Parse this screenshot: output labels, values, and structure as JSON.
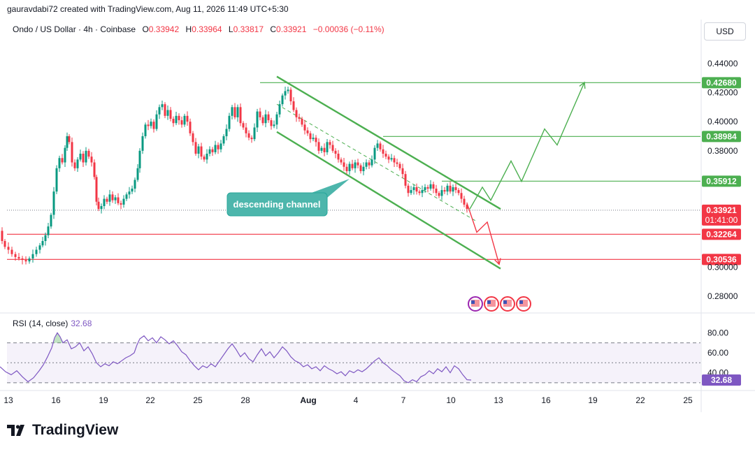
{
  "header": {
    "credit": "gauravdabi72 created with TradingView.com, Aug 11, 2026 11:49 UTC+5:30",
    "symbol": "Ondo / US Dollar · 4h · Coinbase",
    "open_label": "O",
    "open": "0.33942",
    "high_label": "H",
    "high": "0.33964",
    "low_label": "L",
    "low": "0.33817",
    "close_label": "C",
    "close": "0.33921",
    "change": "−0.00036 (−0.11%)",
    "currency": "USD"
  },
  "brand": {
    "name": "TradingView",
    "logo_icon": "tradingview-logo-icon"
  },
  "colors": {
    "up": "#089981",
    "down": "#f23645",
    "green_line": "#4caf50",
    "red_line": "#f23645",
    "rsi": "#7e57c2",
    "callout": "#4db6ac"
  },
  "annotation": {
    "text": "descending channel"
  },
  "chart_data": [
    {
      "type": "candlestick",
      "ylim": [
        0.27,
        0.45
      ],
      "y_ticks": [
        "0.44000",
        "0.42000",
        "0.40000",
        "0.38000",
        "0.30000",
        "0.28000"
      ],
      "x_ticks": [
        "13",
        "16",
        "19",
        "22",
        "25",
        "28",
        "Aug",
        "4",
        "7",
        "10",
        "13",
        "16",
        "19",
        "22",
        "25"
      ],
      "last_price": 0.33921,
      "countdown": "01:41:00",
      "horizontal_levels": [
        {
          "value": 0.4268,
          "label": "0.42680",
          "color": "green"
        },
        {
          "value": 0.38984,
          "label": "0.38984",
          "color": "green"
        },
        {
          "value": 0.35912,
          "label": "0.35912",
          "color": "green"
        },
        {
          "value": 0.32264,
          "label": "0.32264",
          "color": "red"
        },
        {
          "value": 0.30536,
          "label": "0.30536",
          "color": "red"
        }
      ],
      "price_path": [
        [
          0,
          0.325
        ],
        [
          4,
          0.318
        ],
        [
          8,
          0.314
        ],
        [
          13,
          0.312
        ],
        [
          18,
          0.309
        ],
        [
          23,
          0.307
        ],
        [
          28,
          0.306
        ],
        [
          33,
          0.305
        ],
        [
          38,
          0.304
        ],
        [
          43,
          0.306
        ],
        [
          48,
          0.309
        ],
        [
          53,
          0.312
        ],
        [
          58,
          0.315
        ],
        [
          62,
          0.318
        ],
        [
          66,
          0.322
        ],
        [
          70,
          0.328
        ],
        [
          74,
          0.336
        ],
        [
          78,
          0.352
        ],
        [
          82,
          0.368
        ],
        [
          86,
          0.375
        ],
        [
          90,
          0.372
        ],
        [
          94,
          0.382
        ],
        [
          97,
          0.39
        ],
        [
          100,
          0.386
        ],
        [
          104,
          0.372
        ],
        [
          108,
          0.368
        ],
        [
          112,
          0.374
        ],
        [
          116,
          0.378
        ],
        [
          120,
          0.372
        ],
        [
          124,
          0.38
        ],
        [
          128,
          0.376
        ],
        [
          132,
          0.372
        ],
        [
          136,
          0.362
        ],
        [
          139,
          0.345
        ],
        [
          142,
          0.34
        ],
        [
          146,
          0.342
        ],
        [
          150,
          0.347
        ],
        [
          154,
          0.345
        ],
        [
          158,
          0.35
        ],
        [
          162,
          0.346
        ],
        [
          166,
          0.348
        ],
        [
          170,
          0.344
        ],
        [
          174,
          0.343
        ],
        [
          178,
          0.347
        ],
        [
          182,
          0.35
        ],
        [
          186,
          0.352
        ],
        [
          190,
          0.354
        ],
        [
          194,
          0.36
        ],
        [
          198,
          0.368
        ],
        [
          201,
          0.38
        ],
        [
          205,
          0.39
        ],
        [
          209,
          0.398
        ],
        [
          213,
          0.397
        ],
        [
          217,
          0.4
        ],
        [
          221,
          0.395
        ],
        [
          225,
          0.405
        ],
        [
          229,
          0.41
        ],
        [
          233,
          0.412
        ],
        [
          237,
          0.404
        ],
        [
          241,
          0.408
        ],
        [
          245,
          0.402
        ],
        [
          249,
          0.399
        ],
        [
          253,
          0.404
        ],
        [
          257,
          0.401
        ],
        [
          261,
          0.398
        ],
        [
          265,
          0.404
        ],
        [
          269,
          0.4
        ],
        [
          273,
          0.392
        ],
        [
          277,
          0.386
        ],
        [
          281,
          0.378
        ],
        [
          285,
          0.383
        ],
        [
          289,
          0.376
        ],
        [
          293,
          0.374
        ],
        [
          297,
          0.378
        ],
        [
          301,
          0.381
        ],
        [
          305,
          0.379
        ],
        [
          309,
          0.384
        ],
        [
          313,
          0.381
        ],
        [
          317,
          0.385
        ],
        [
          321,
          0.39
        ],
        [
          325,
          0.395
        ],
        [
          329,
          0.404
        ],
        [
          333,
          0.41
        ],
        [
          337,
          0.403
        ],
        [
          341,
          0.41
        ],
        [
          345,
          0.399
        ],
        [
          349,
          0.396
        ],
        [
          353,
          0.392
        ],
        [
          357,
          0.389
        ],
        [
          361,
          0.388
        ],
        [
          365,
          0.396
        ],
        [
          369,
          0.407
        ],
        [
          373,
          0.403
        ],
        [
          377,
          0.399
        ],
        [
          381,
          0.405
        ],
        [
          385,
          0.401
        ],
        [
          389,
          0.397
        ],
        [
          393,
          0.398
        ],
        [
          397,
          0.405
        ],
        [
          401,
          0.412
        ],
        [
          405,
          0.418
        ],
        [
          409,
          0.421
        ],
        [
          413,
          0.422
        ],
        [
          417,
          0.414
        ],
        [
          421,
          0.408
        ],
        [
          425,
          0.403
        ],
        [
          429,
          0.402
        ],
        [
          433,
          0.398
        ],
        [
          437,
          0.394
        ],
        [
          441,
          0.392
        ],
        [
          445,
          0.388
        ],
        [
          449,
          0.389
        ],
        [
          453,
          0.386
        ],
        [
          457,
          0.38
        ],
        [
          461,
          0.382
        ],
        [
          465,
          0.379
        ],
        [
          469,
          0.386
        ],
        [
          473,
          0.384
        ],
        [
          477,
          0.38
        ],
        [
          481,
          0.378
        ],
        [
          485,
          0.374
        ],
        [
          489,
          0.372
        ],
        [
          493,
          0.369
        ],
        [
          497,
          0.366
        ],
        [
          501,
          0.371
        ],
        [
          505,
          0.368
        ],
        [
          509,
          0.372
        ],
        [
          513,
          0.37
        ],
        [
          517,
          0.366
        ],
        [
          521,
          0.369
        ],
        [
          525,
          0.372
        ],
        [
          529,
          0.37
        ],
        [
          533,
          0.374
        ],
        [
          537,
          0.382
        ],
        [
          541,
          0.385
        ],
        [
          545,
          0.381
        ],
        [
          549,
          0.378
        ],
        [
          553,
          0.376
        ],
        [
          557,
          0.374
        ],
        [
          561,
          0.375
        ],
        [
          565,
          0.372
        ],
        [
          569,
          0.371
        ],
        [
          573,
          0.368
        ],
        [
          577,
          0.364
        ],
        [
          581,
          0.356
        ],
        [
          585,
          0.351
        ],
        [
          589,
          0.353
        ],
        [
          593,
          0.355
        ],
        [
          597,
          0.352
        ],
        [
          601,
          0.351
        ],
        [
          605,
          0.353
        ],
        [
          609,
          0.355
        ],
        [
          613,
          0.354
        ],
        [
          617,
          0.357
        ],
        [
          621,
          0.354
        ],
        [
          625,
          0.351
        ],
        [
          629,
          0.349
        ],
        [
          633,
          0.353
        ],
        [
          637,
          0.352
        ],
        [
          641,
          0.356
        ],
        [
          645,
          0.352
        ],
        [
          649,
          0.355
        ],
        [
          653,
          0.353
        ],
        [
          657,
          0.351
        ],
        [
          661,
          0.347
        ],
        [
          665,
          0.343
        ],
        [
          669,
          0.34
        ]
      ],
      "projection_green": [
        [
          672,
          0.34
        ],
        [
          690,
          0.355
        ],
        [
          702,
          0.346
        ],
        [
          731,
          0.373
        ],
        [
          746,
          0.359
        ],
        [
          779,
          0.395
        ],
        [
          797,
          0.384
        ],
        [
          836,
          0.427
        ]
      ],
      "projection_red": [
        [
          668,
          0.344
        ],
        [
          682,
          0.324
        ],
        [
          697,
          0.331
        ],
        [
          714,
          0.302
        ]
      ],
      "channel": {
        "upper": [
          [
            396,
            0.431
          ],
          [
            716,
            0.34
          ]
        ],
        "lower": [
          [
            396,
            0.393
          ],
          [
            716,
            0.299
          ]
        ],
        "mid": [
          [
            396,
            0.412
          ],
          [
            680,
            0.332
          ]
        ]
      },
      "event_icons": [
        "flag-icon",
        "flag-icon",
        "flag-icon",
        "flag-icon"
      ]
    },
    {
      "type": "line",
      "title": "RSI (14, close)",
      "current": "32.68",
      "ylim": [
        25,
        95
      ],
      "y_ticks": [
        "80.00",
        "60.00",
        "40.00"
      ],
      "bands": [
        70,
        50,
        30
      ],
      "values": [
        [
          0,
          46
        ],
        [
          8,
          41
        ],
        [
          16,
          38
        ],
        [
          24,
          42
        ],
        [
          32,
          36
        ],
        [
          40,
          31
        ],
        [
          48,
          35
        ],
        [
          56,
          42
        ],
        [
          62,
          48
        ],
        [
          68,
          56
        ],
        [
          74,
          65
        ],
        [
          78,
          75
        ],
        [
          82,
          80
        ],
        [
          86,
          76
        ],
        [
          90,
          70
        ],
        [
          96,
          73
        ],
        [
          102,
          64
        ],
        [
          108,
          66
        ],
        [
          114,
          70
        ],
        [
          120,
          62
        ],
        [
          126,
          66
        ],
        [
          132,
          59
        ],
        [
          138,
          50
        ],
        [
          144,
          46
        ],
        [
          150,
          49
        ],
        [
          156,
          47
        ],
        [
          162,
          51
        ],
        [
          168,
          49
        ],
        [
          174,
          52
        ],
        [
          180,
          55
        ],
        [
          186,
          57
        ],
        [
          192,
          60
        ],
        [
          196,
          68
        ],
        [
          200,
          74
        ],
        [
          206,
          77
        ],
        [
          212,
          72
        ],
        [
          218,
          75
        ],
        [
          224,
          70
        ],
        [
          230,
          76
        ],
        [
          236,
          73
        ],
        [
          242,
          69
        ],
        [
          248,
          72
        ],
        [
          254,
          67
        ],
        [
          260,
          61
        ],
        [
          266,
          58
        ],
        [
          272,
          52
        ],
        [
          278,
          47
        ],
        [
          284,
          43
        ],
        [
          290,
          47
        ],
        [
          296,
          45
        ],
        [
          302,
          49
        ],
        [
          308,
          46
        ],
        [
          314,
          52
        ],
        [
          320,
          58
        ],
        [
          326,
          64
        ],
        [
          332,
          69
        ],
        [
          338,
          63
        ],
        [
          344,
          56
        ],
        [
          350,
          60
        ],
        [
          356,
          54
        ],
        [
          362,
          51
        ],
        [
          368,
          58
        ],
        [
          374,
          64
        ],
        [
          380,
          57
        ],
        [
          386,
          61
        ],
        [
          392,
          55
        ],
        [
          398,
          60
        ],
        [
          404,
          66
        ],
        [
          410,
          62
        ],
        [
          416,
          56
        ],
        [
          422,
          52
        ],
        [
          428,
          50
        ],
        [
          434,
          46
        ],
        [
          440,
          48
        ],
        [
          446,
          44
        ],
        [
          452,
          46
        ],
        [
          458,
          42
        ],
        [
          464,
          47
        ],
        [
          470,
          44
        ],
        [
          476,
          42
        ],
        [
          482,
          39
        ],
        [
          488,
          41
        ],
        [
          494,
          37
        ],
        [
          500,
          42
        ],
        [
          506,
          40
        ],
        [
          512,
          43
        ],
        [
          518,
          41
        ],
        [
          524,
          44
        ],
        [
          530,
          48
        ],
        [
          536,
          52
        ],
        [
          542,
          55
        ],
        [
          548,
          50
        ],
        [
          554,
          47
        ],
        [
          560,
          43
        ],
        [
          566,
          40
        ],
        [
          572,
          37
        ],
        [
          578,
          32
        ],
        [
          584,
          30
        ],
        [
          590,
          33
        ],
        [
          596,
          31
        ],
        [
          602,
          36
        ],
        [
          608,
          38
        ],
        [
          614,
          42
        ],
        [
          620,
          39
        ],
        [
          626,
          44
        ],
        [
          632,
          41
        ],
        [
          638,
          46
        ],
        [
          644,
          40
        ],
        [
          650,
          47
        ],
        [
          656,
          44
        ],
        [
          662,
          38
        ],
        [
          668,
          33
        ],
        [
          674,
          32.68
        ]
      ]
    }
  ]
}
